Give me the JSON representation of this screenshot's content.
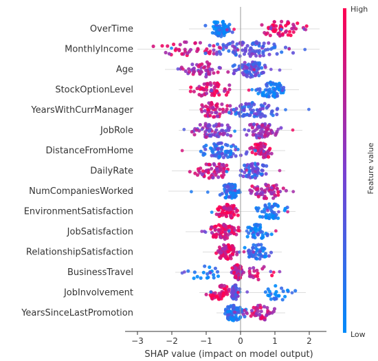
{
  "chart_data": {
    "type": "scatter",
    "subtype": "shap-beeswarm",
    "xlabel": "SHAP value (impact on model output)",
    "xlim": [
      -3.3,
      2.6
    ],
    "xticks": [
      -3,
      -2,
      -1,
      0,
      1,
      2
    ],
    "tick_labels": [
      "−3",
      "−2",
      "−1",
      "0",
      "1",
      "2"
    ],
    "colorbar": {
      "title": "Feature value",
      "high_label": "High",
      "low_label": "Low",
      "high_color": "#ff0052",
      "low_color": "#008bfb"
    },
    "features": [
      {
        "name": "OverTime",
        "min": -1.5,
        "max": 2.3,
        "clusters": [
          {
            "c": -0.6,
            "w": 0.55,
            "f": 0.55,
            "col": 0.08
          },
          {
            "c": 1.2,
            "w": 0.9,
            "f": 0.45,
            "col": 0.9
          }
        ]
      },
      {
        "name": "MonthlyIncome",
        "min": -3.0,
        "max": 2.3,
        "clusters": [
          {
            "c": -1.4,
            "w": 1.2,
            "f": 0.3,
            "col": 0.8
          },
          {
            "c": 0.2,
            "w": 1.6,
            "f": 0.7,
            "col": 0.35
          }
        ]
      },
      {
        "name": "Age",
        "min": -2.2,
        "max": 1.5,
        "clusters": [
          {
            "c": -1.1,
            "w": 0.9,
            "f": 0.4,
            "col": 0.65
          },
          {
            "c": 0.3,
            "w": 0.7,
            "f": 0.6,
            "col": 0.35
          }
        ]
      },
      {
        "name": "StockOptionLevel",
        "min": -1.8,
        "max": 1.7,
        "clusters": [
          {
            "c": -0.9,
            "w": 0.8,
            "f": 0.45,
            "col": 0.85
          },
          {
            "c": 0.9,
            "w": 0.55,
            "f": 0.55,
            "col": 0.1
          }
        ]
      },
      {
        "name": "YearsWithCurrManager",
        "min": -1.5,
        "max": 2.0,
        "clusters": [
          {
            "c": -0.8,
            "w": 0.7,
            "f": 0.4,
            "col": 0.75
          },
          {
            "c": 0.4,
            "w": 1.0,
            "f": 0.6,
            "col": 0.3
          }
        ]
      },
      {
        "name": "JobRole",
        "min": -1.8,
        "max": 1.8,
        "clusters": [
          {
            "c": -0.8,
            "w": 0.9,
            "f": 0.5,
            "col": 0.55
          },
          {
            "c": 0.6,
            "w": 0.7,
            "f": 0.5,
            "col": 0.6
          }
        ]
      },
      {
        "name": "DistanceFromHome",
        "min": -1.7,
        "max": 1.3,
        "clusters": [
          {
            "c": -0.5,
            "w": 0.9,
            "f": 0.55,
            "col": 0.25
          },
          {
            "c": 0.6,
            "w": 0.5,
            "f": 0.45,
            "col": 0.85
          }
        ]
      },
      {
        "name": "DailyRate",
        "min": -2.0,
        "max": 1.3,
        "clusters": [
          {
            "c": -0.8,
            "w": 0.8,
            "f": 0.5,
            "col": 0.75
          },
          {
            "c": 0.4,
            "w": 0.6,
            "f": 0.5,
            "col": 0.3
          }
        ]
      },
      {
        "name": "NumCompaniesWorked",
        "min": -2.1,
        "max": 1.6,
        "clusters": [
          {
            "c": -0.3,
            "w": 0.35,
            "f": 0.55,
            "col": 0.2
          },
          {
            "c": 0.8,
            "w": 0.7,
            "f": 0.45,
            "col": 0.75
          }
        ]
      },
      {
        "name": "EnvironmentSatisfaction",
        "min": -0.9,
        "max": 1.6,
        "clusters": [
          {
            "c": -0.4,
            "w": 0.4,
            "f": 0.6,
            "col": 0.9
          },
          {
            "c": 0.9,
            "w": 0.6,
            "f": 0.4,
            "col": 0.05
          }
        ]
      },
      {
        "name": "JobSatisfaction",
        "min": -1.6,
        "max": 1.1,
        "clusters": [
          {
            "c": -0.5,
            "w": 0.6,
            "f": 0.6,
            "col": 0.85
          },
          {
            "c": 0.5,
            "w": 0.45,
            "f": 0.4,
            "col": 0.15
          }
        ]
      },
      {
        "name": "RelationshipSatisfaction",
        "min": -1.1,
        "max": 1.2,
        "clusters": [
          {
            "c": -0.4,
            "w": 0.4,
            "f": 0.6,
            "col": 0.85
          },
          {
            "c": 0.5,
            "w": 0.6,
            "f": 0.4,
            "col": 0.2
          }
        ]
      },
      {
        "name": "BusinessTravel",
        "min": -1.9,
        "max": 1.2,
        "clusters": [
          {
            "c": -0.1,
            "w": 0.2,
            "f": 0.7,
            "col": 0.75
          },
          {
            "c": 0.5,
            "w": 0.5,
            "f": 0.15,
            "col": 0.8
          },
          {
            "c": -1.0,
            "w": 0.8,
            "f": 0.15,
            "col": 0.05
          }
        ]
      },
      {
        "name": "JobInvolvement",
        "min": -1.2,
        "max": 1.9,
        "clusters": [
          {
            "c": -0.6,
            "w": 0.5,
            "f": 0.45,
            "col": 0.9
          },
          {
            "c": -0.15,
            "w": 0.15,
            "f": 0.35,
            "col": 0.35
          },
          {
            "c": 1.1,
            "w": 0.6,
            "f": 0.2,
            "col": 0.05
          }
        ]
      },
      {
        "name": "YearsSinceLastPromotion",
        "min": -0.7,
        "max": 1.3,
        "clusters": [
          {
            "c": -0.2,
            "w": 0.4,
            "f": 0.65,
            "col": 0.15
          },
          {
            "c": 0.6,
            "w": 0.6,
            "f": 0.35,
            "col": 0.75
          }
        ]
      }
    ]
  }
}
